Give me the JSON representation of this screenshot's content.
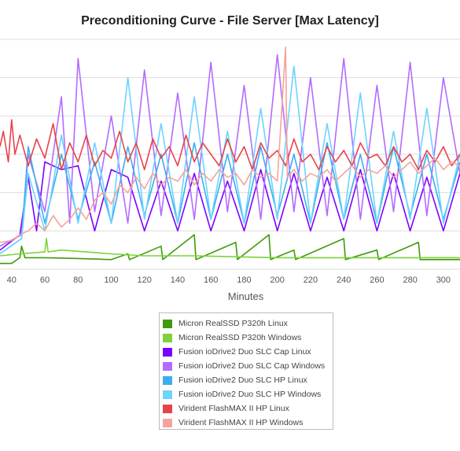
{
  "chart_data": {
    "type": "line",
    "title": "Preconditioning Curve - File Server [Max Latency]",
    "xlabel": "Minutes",
    "ylabel": "",
    "xlim": [
      33,
      310
    ],
    "ylim": [
      0,
      6
    ],
    "x_ticks": [
      40,
      60,
      80,
      100,
      120,
      140,
      160,
      180,
      200,
      220,
      240,
      260,
      280,
      300
    ],
    "grid": "horizontal",
    "legend_position": "bottom",
    "series": [
      {
        "name": "Micron RealSSD P320h Linux",
        "color": "#3f9b0b",
        "points": [
          [
            33,
            0.15
          ],
          [
            40,
            0.15
          ],
          [
            45,
            0.3
          ],
          [
            46,
            0.6
          ],
          [
            48,
            0.3
          ],
          [
            60,
            0.3
          ],
          [
            80,
            0.28
          ],
          [
            100,
            0.25
          ],
          [
            110,
            0.4
          ],
          [
            111,
            0.25
          ],
          [
            130,
            0.6
          ],
          [
            131,
            0.25
          ],
          [
            150,
            0.9
          ],
          [
            151,
            0.25
          ],
          [
            175,
            0.7
          ],
          [
            176,
            0.25
          ],
          [
            195,
            0.9
          ],
          [
            196,
            0.25
          ],
          [
            210,
            0.5
          ],
          [
            211,
            0.25
          ],
          [
            240,
            0.8
          ],
          [
            241,
            0.25
          ],
          [
            260,
            0.5
          ],
          [
            261,
            0.25
          ],
          [
            285,
            0.7
          ],
          [
            286,
            0.25
          ],
          [
            310,
            0.25
          ]
        ]
      },
      {
        "name": "Micron RealSSD P320h Windows",
        "color": "#7ed13b",
        "points": [
          [
            33,
            0.35
          ],
          [
            45,
            0.4
          ],
          [
            60,
            0.45
          ],
          [
            61,
            0.8
          ],
          [
            62,
            0.45
          ],
          [
            70,
            0.5
          ],
          [
            100,
            0.4
          ],
          [
            120,
            0.35
          ],
          [
            150,
            0.35
          ],
          [
            200,
            0.3
          ],
          [
            250,
            0.3
          ],
          [
            310,
            0.3
          ]
        ]
      },
      {
        "name": "Fusion ioDrive2 Duo SLC Cap Linux",
        "color": "#7a00ff",
        "points": [
          [
            33,
            0.5
          ],
          [
            45,
            0.9
          ],
          [
            50,
            2.4
          ],
          [
            55,
            1.0
          ],
          [
            60,
            2.8
          ],
          [
            70,
            2.6
          ],
          [
            80,
            2.7
          ],
          [
            90,
            1.0
          ],
          [
            100,
            2.6
          ],
          [
            110,
            2.4
          ],
          [
            120,
            1.0
          ],
          [
            130,
            2.3
          ],
          [
            140,
            1.0
          ],
          [
            150,
            2.5
          ],
          [
            160,
            1.0
          ],
          [
            170,
            2.3
          ],
          [
            180,
            1.0
          ],
          [
            190,
            2.6
          ],
          [
            200,
            1.0
          ],
          [
            210,
            2.5
          ],
          [
            220,
            1.0
          ],
          [
            230,
            2.4
          ],
          [
            240,
            1.0
          ],
          [
            250,
            2.6
          ],
          [
            260,
            1.0
          ],
          [
            270,
            2.5
          ],
          [
            280,
            1.0
          ],
          [
            290,
            2.4
          ],
          [
            300,
            1.0
          ],
          [
            310,
            2.5
          ]
        ]
      },
      {
        "name": "Fusion ioDrive2 Duo SLC Cap Windows",
        "color": "#b36bff",
        "points": [
          [
            33,
            0.6
          ],
          [
            46,
            0.9
          ],
          [
            50,
            3.0
          ],
          [
            60,
            1.5
          ],
          [
            70,
            4.5
          ],
          [
            75,
            1.2
          ],
          [
            80,
            5.5
          ],
          [
            90,
            1.5
          ],
          [
            100,
            4.0
          ],
          [
            110,
            1.2
          ],
          [
            120,
            5.2
          ],
          [
            130,
            1.4
          ],
          [
            140,
            4.6
          ],
          [
            150,
            1.3
          ],
          [
            160,
            5.4
          ],
          [
            170,
            1.5
          ],
          [
            180,
            4.8
          ],
          [
            190,
            1.3
          ],
          [
            200,
            5.6
          ],
          [
            210,
            1.5
          ],
          [
            220,
            5.0
          ],
          [
            230,
            1.4
          ],
          [
            240,
            5.5
          ],
          [
            250,
            1.3
          ],
          [
            260,
            4.8
          ],
          [
            270,
            1.5
          ],
          [
            280,
            5.4
          ],
          [
            290,
            1.4
          ],
          [
            300,
            5.0
          ],
          [
            310,
            2.5
          ]
        ]
      },
      {
        "name": "Fusion ioDrive2 Duo SLC HP Linux",
        "color": "#3aaef0",
        "points": [
          [
            33,
            0.4
          ],
          [
            46,
            0.8
          ],
          [
            50,
            3.2
          ],
          [
            60,
            1.2
          ],
          [
            70,
            3.0
          ],
          [
            80,
            1.3
          ],
          [
            90,
            2.8
          ],
          [
            100,
            1.2
          ],
          [
            110,
            3.2
          ],
          [
            120,
            1.4
          ],
          [
            130,
            3.0
          ],
          [
            140,
            1.2
          ],
          [
            150,
            3.3
          ],
          [
            160,
            1.3
          ],
          [
            170,
            3.0
          ],
          [
            180,
            1.2
          ],
          [
            190,
            3.2
          ],
          [
            200,
            1.4
          ],
          [
            210,
            3.0
          ],
          [
            220,
            1.2
          ],
          [
            230,
            3.3
          ],
          [
            240,
            1.3
          ],
          [
            250,
            3.0
          ],
          [
            260,
            1.2
          ],
          [
            270,
            3.2
          ],
          [
            280,
            1.4
          ],
          [
            290,
            3.0
          ],
          [
            300,
            1.3
          ],
          [
            310,
            2.8
          ]
        ]
      },
      {
        "name": "Fusion ioDrive2 Duo SLC HP Windows",
        "color": "#6dd3ff",
        "points": [
          [
            33,
            0.4
          ],
          [
            46,
            0.8
          ],
          [
            50,
            2.5
          ],
          [
            60,
            1.0
          ],
          [
            70,
            3.5
          ],
          [
            80,
            1.2
          ],
          [
            90,
            3.3
          ],
          [
            100,
            1.2
          ],
          [
            110,
            5.0
          ],
          [
            120,
            1.3
          ],
          [
            130,
            3.8
          ],
          [
            140,
            1.2
          ],
          [
            150,
            4.5
          ],
          [
            160,
            1.3
          ],
          [
            170,
            3.6
          ],
          [
            180,
            1.2
          ],
          [
            190,
            4.2
          ],
          [
            200,
            1.3
          ],
          [
            210,
            5.3
          ],
          [
            220,
            1.2
          ],
          [
            230,
            3.8
          ],
          [
            240,
            1.3
          ],
          [
            250,
            4.6
          ],
          [
            260,
            1.2
          ],
          [
            270,
            3.6
          ],
          [
            280,
            1.3
          ],
          [
            290,
            4.2
          ],
          [
            300,
            1.2
          ],
          [
            310,
            3.0
          ]
        ]
      },
      {
        "name": "Virident FlashMAX II HP Linux",
        "color": "#e8434a",
        "points": [
          [
            33,
            3.2
          ],
          [
            35,
            3.6
          ],
          [
            38,
            2.8
          ],
          [
            40,
            3.9
          ],
          [
            42,
            3.0
          ],
          [
            45,
            3.5
          ],
          [
            50,
            2.7
          ],
          [
            55,
            3.4
          ],
          [
            60,
            2.9
          ],
          [
            65,
            3.8
          ],
          [
            70,
            2.6
          ],
          [
            75,
            3.3
          ],
          [
            80,
            2.8
          ],
          [
            85,
            3.5
          ],
          [
            90,
            2.7
          ],
          [
            95,
            3.1
          ],
          [
            100,
            2.9
          ],
          [
            105,
            3.6
          ],
          [
            110,
            2.8
          ],
          [
            115,
            3.3
          ],
          [
            120,
            2.6
          ],
          [
            125,
            3.4
          ],
          [
            130,
            2.9
          ],
          [
            135,
            3.2
          ],
          [
            140,
            2.7
          ],
          [
            145,
            3.5
          ],
          [
            150,
            2.8
          ],
          [
            155,
            3.3
          ],
          [
            160,
            3.0
          ],
          [
            165,
            2.7
          ],
          [
            170,
            3.4
          ],
          [
            175,
            2.8
          ],
          [
            180,
            3.2
          ],
          [
            185,
            2.6
          ],
          [
            190,
            3.3
          ],
          [
            195,
            2.9
          ],
          [
            200,
            3.1
          ],
          [
            205,
            2.7
          ],
          [
            210,
            3.4
          ],
          [
            215,
            2.8
          ],
          [
            220,
            3.0
          ],
          [
            225,
            2.6
          ],
          [
            230,
            3.2
          ],
          [
            235,
            2.8
          ],
          [
            240,
            3.1
          ],
          [
            245,
            2.7
          ],
          [
            250,
            3.3
          ],
          [
            255,
            2.9
          ],
          [
            260,
            3.0
          ],
          [
            265,
            2.7
          ],
          [
            270,
            3.2
          ],
          [
            275,
            2.8
          ],
          [
            280,
            3.0
          ],
          [
            285,
            2.6
          ],
          [
            290,
            3.1
          ],
          [
            295,
            2.8
          ],
          [
            300,
            3.2
          ],
          [
            305,
            2.7
          ],
          [
            310,
            3.0
          ]
        ]
      },
      {
        "name": "Virident FlashMAX II HP Windows",
        "color": "#f5a39c",
        "points": [
          [
            33,
            0.7
          ],
          [
            40,
            0.75
          ],
          [
            45,
            0.9
          ],
          [
            50,
            1.0
          ],
          [
            55,
            1.2
          ],
          [
            60,
            1.0
          ],
          [
            65,
            1.4
          ],
          [
            70,
            1.1
          ],
          [
            75,
            1.3
          ],
          [
            80,
            1.6
          ],
          [
            85,
            1.3
          ],
          [
            90,
            1.8
          ],
          [
            95,
            2.0
          ],
          [
            100,
            1.7
          ],
          [
            105,
            2.2
          ],
          [
            110,
            2.0
          ],
          [
            115,
            2.4
          ],
          [
            120,
            2.1
          ],
          [
            125,
            2.5
          ],
          [
            130,
            2.2
          ],
          [
            135,
            2.4
          ],
          [
            140,
            2.3
          ],
          [
            145,
            2.6
          ],
          [
            150,
            2.2
          ],
          [
            155,
            2.5
          ],
          [
            160,
            2.3
          ],
          [
            165,
            2.6
          ],
          [
            170,
            2.4
          ],
          [
            175,
            2.5
          ],
          [
            180,
            2.2
          ],
          [
            185,
            2.6
          ],
          [
            190,
            2.4
          ],
          [
            195,
            2.5
          ],
          [
            200,
            2.3
          ],
          [
            205,
            5.8
          ],
          [
            206,
            2.4
          ],
          [
            210,
            2.6
          ],
          [
            215,
            2.3
          ],
          [
            220,
            2.5
          ],
          [
            225,
            2.4
          ],
          [
            230,
            2.6
          ],
          [
            235,
            2.3
          ],
          [
            240,
            2.5
          ],
          [
            245,
            2.7
          ],
          [
            250,
            2.4
          ],
          [
            255,
            2.6
          ],
          [
            260,
            2.5
          ],
          [
            265,
            2.7
          ],
          [
            270,
            2.4
          ],
          [
            275,
            2.6
          ],
          [
            280,
            2.8
          ],
          [
            285,
            2.5
          ],
          [
            290,
            2.7
          ],
          [
            295,
            2.9
          ],
          [
            300,
            2.6
          ],
          [
            305,
            2.8
          ],
          [
            310,
            2.7
          ]
        ]
      }
    ]
  }
}
